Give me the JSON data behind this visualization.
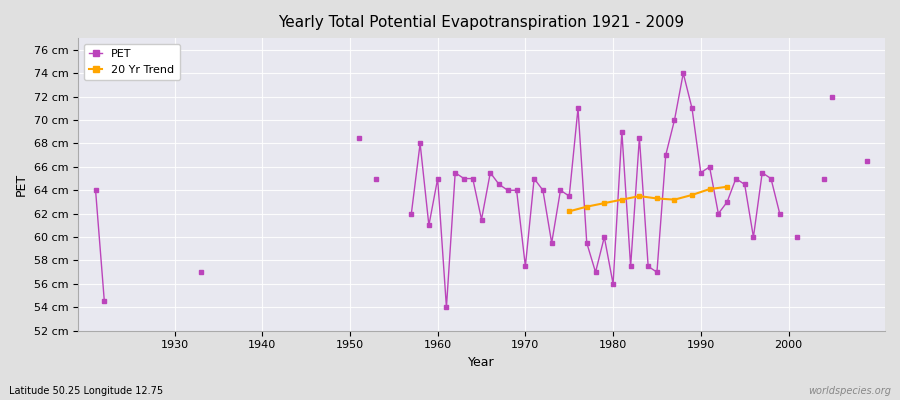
{
  "title": "Yearly Total Potential Evapotranspiration 1921 - 2009",
  "xlabel": "Year",
  "ylabel": "PET",
  "subtitle": "Latitude 50.25 Longitude 12.75",
  "watermark": "worldspecies.org",
  "ylim": [
    52,
    77
  ],
  "xlim": [
    1919,
    2011
  ],
  "ytick_labels": [
    "52 cm",
    "54 cm",
    "56 cm",
    "58 cm",
    "60 cm",
    "62 cm",
    "64 cm",
    "66 cm",
    "68 cm",
    "70 cm",
    "72 cm",
    "74 cm",
    "76 cm"
  ],
  "ytick_values": [
    52,
    54,
    56,
    58,
    60,
    62,
    64,
    66,
    68,
    70,
    72,
    74,
    76
  ],
  "pet_color": "#bb44bb",
  "trend_color": "#FFA500",
  "bg_color": "#e0e0e0",
  "plot_bg_color": "#e8e8f0",
  "pet_segments": [
    {
      "years": [
        1921,
        1922
      ],
      "values": [
        64,
        54.5
      ]
    },
    {
      "years": [
        1933
      ],
      "values": [
        57
      ]
    },
    {
      "years": [
        1951
      ],
      "values": [
        68.5
      ]
    },
    {
      "years": [
        1953
      ],
      "values": [
        65
      ]
    },
    {
      "years": [
        1957,
        1958,
        1959,
        1960,
        1961,
        1962,
        1963,
        1964,
        1965,
        1966,
        1967,
        1968,
        1969,
        1970,
        1971,
        1972,
        1973,
        1974,
        1975,
        1976,
        1977,
        1978,
        1979,
        1980,
        1981,
        1982,
        1983,
        1984,
        1985,
        1986,
        1987,
        1988,
        1989,
        1990,
        1991,
        1992,
        1993,
        1994,
        1995,
        1996,
        1997,
        1998,
        1999
      ],
      "values": [
        62,
        68,
        61,
        65,
        54,
        65.5,
        65,
        65,
        61.5,
        65.5,
        64.5,
        64,
        64,
        57.5,
        65,
        64,
        59.5,
        64,
        63.5,
        71,
        59.5,
        57,
        60,
        56,
        69,
        57.5,
        68.5,
        57.5,
        57,
        67,
        70,
        74,
        71,
        65.5,
        66,
        62,
        63,
        65,
        64.5,
        60,
        65.5,
        65,
        62
      ]
    },
    {
      "years": [
        2001
      ],
      "values": [
        60
      ]
    },
    {
      "years": [
        2004
      ],
      "values": [
        65
      ]
    },
    {
      "years": [
        2005
      ],
      "values": [
        72
      ]
    },
    {
      "years": [
        2009
      ],
      "values": [
        66.5
      ]
    }
  ],
  "trend_data": {
    "years": [
      1975,
      1977,
      1979,
      1981,
      1983,
      1985,
      1987,
      1989,
      1991,
      1993
    ],
    "values": [
      62.2,
      62.6,
      62.9,
      63.2,
      63.5,
      63.3,
      63.2,
      63.6,
      64.1,
      64.3
    ]
  }
}
